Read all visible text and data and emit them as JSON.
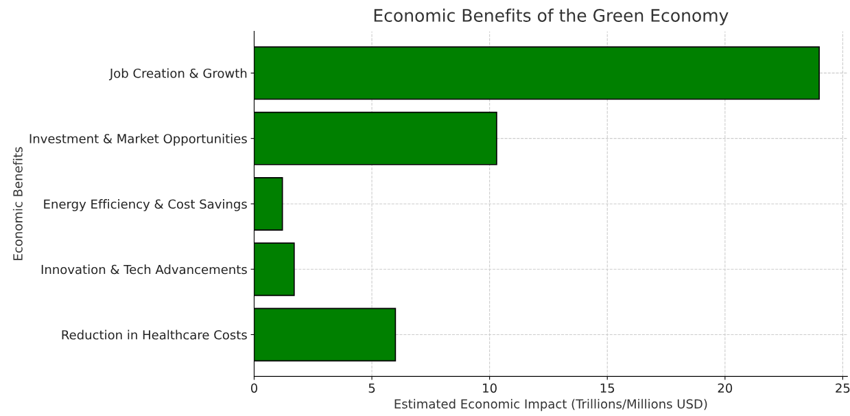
{
  "chart_data": {
    "type": "bar",
    "orientation": "horizontal",
    "title": "Economic Benefits of the Green Economy",
    "xlabel": "Estimated Economic Impact (Trillions/Millions USD)",
    "ylabel": "Economic Benefits",
    "categories": [
      "Job Creation & Growth",
      "Investment & Market Opportunities",
      "Energy Efficiency & Cost Savings",
      "Innovation & Tech Advancements",
      "Reduction in Healthcare Costs"
    ],
    "values": [
      24,
      10.3,
      1.2,
      1.7,
      6.0
    ],
    "color": "#008000",
    "xlim": [
      0,
      25.2
    ],
    "xticks": [
      0,
      5,
      10,
      15,
      20,
      25
    ],
    "grid": true
  }
}
